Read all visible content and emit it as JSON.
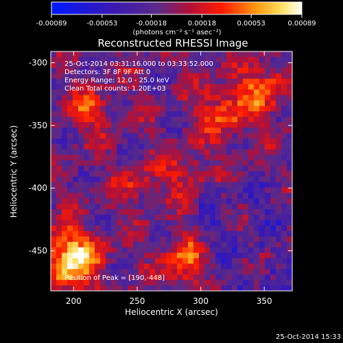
{
  "chart_data": {
    "type": "heatmap",
    "title": "Reconstructed RHESSI Image",
    "xlabel": "Heliocentric X (arcsec)",
    "ylabel": "Heliocentric Y (arcsec)",
    "xlim": [
      182,
      372
    ],
    "ylim": [
      -482,
      -291
    ],
    "xticks": [
      200,
      250,
      300,
      350
    ],
    "yticks": [
      -300,
      -350,
      -400,
      -450
    ],
    "colorbar": {
      "label": "(photons cm⁻² s⁻¹ asec⁻²)",
      "ticks": [
        "-0.00089",
        "-0.00053",
        "-0.00018",
        "0.00018",
        "0.00053",
        "0.00089"
      ],
      "range": [
        -0.00089,
        0.00089
      ]
    },
    "annotations": [
      "25-Oct-2014 03:31:16.000 to 03:33:52.000",
      "Detectors: 3F 8F 9F Att 0",
      "Energy Range: 12.0 - 25.0 keV",
      "Clean    Total counts: 1.20E+03"
    ],
    "peak_label": "Position of Peak = [190,-448]",
    "footer_timestamp": "25-Oct-2014 15:33",
    "grid": false,
    "colormap": "blue-purple-red-yellow-white"
  }
}
